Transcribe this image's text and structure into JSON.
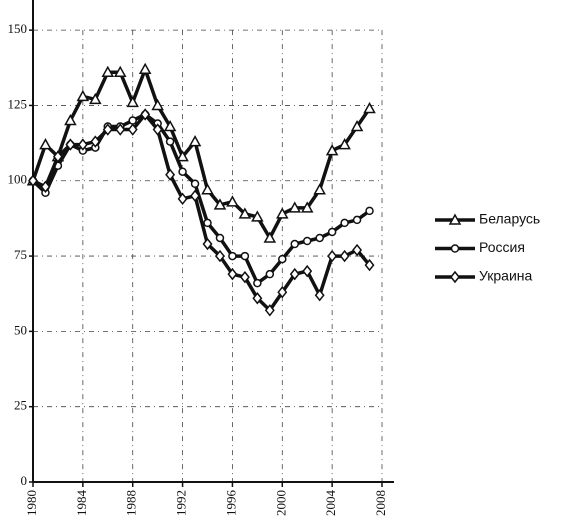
{
  "chart_data": {
    "type": "line",
    "x": [
      1980,
      1981,
      1982,
      1983,
      1984,
      1985,
      1986,
      1987,
      1988,
      1989,
      1990,
      1991,
      1992,
      1993,
      1994,
      1995,
      1996,
      1997,
      1998,
      1999,
      2000,
      2001,
      2002,
      2003,
      2004,
      2005,
      2006,
      2007
    ],
    "series": [
      {
        "name": "Беларусь",
        "color": "#111111",
        "marker": "triangle",
        "values": [
          100,
          112,
          108,
          120,
          128,
          127,
          136,
          136,
          126,
          137,
          125,
          118,
          108,
          113,
          97,
          92,
          93,
          89,
          88,
          81,
          89,
          91,
          91,
          97,
          110,
          112,
          118,
          124
        ]
      },
      {
        "name": "Россия",
        "color": "#111111",
        "marker": "circle",
        "values": [
          100,
          96,
          105,
          112,
          110,
          111,
          118,
          118,
          120,
          122,
          119,
          113,
          103,
          99,
          86,
          81,
          75,
          75,
          66,
          69,
          74,
          79,
          80,
          81,
          83,
          86,
          87,
          90
        ]
      },
      {
        "name": "Украина",
        "color": "#111111",
        "marker": "diamond",
        "values": [
          100,
          98,
          108,
          112,
          112,
          113,
          117,
          117,
          117,
          122,
          117,
          102,
          94,
          95,
          79,
          75,
          69,
          68,
          61,
          57,
          63,
          69,
          70,
          62,
          75,
          75,
          77,
          72
        ]
      }
    ],
    "xlim": [
      1980,
      2008
    ],
    "xticks": [
      1980,
      1984,
      1988,
      1992,
      1996,
      2000,
      2004,
      2008
    ],
    "ylim": [
      0,
      160
    ],
    "yticks": [
      0,
      25,
      50,
      75,
      100,
      125,
      150
    ],
    "grid": true,
    "legend": "right"
  }
}
